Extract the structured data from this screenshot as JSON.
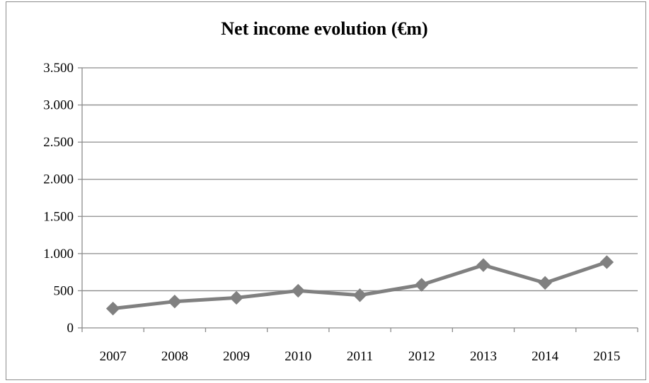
{
  "chart_data": {
    "type": "line",
    "title": "Net income evolution (€m)",
    "xlabel": "",
    "ylabel": "",
    "categories": [
      "2007",
      "2008",
      "2009",
      "2010",
      "2011",
      "2012",
      "2013",
      "2014",
      "2015"
    ],
    "series": [
      {
        "values": [
          260,
          355,
          405,
          500,
          440,
          580,
          845,
          605,
          885
        ],
        "color": "#808080",
        "marker": "diamond"
      }
    ],
    "ylim": [
      0,
      3500
    ],
    "yticks": [
      0,
      500,
      1000,
      1500,
      2000,
      2500,
      3000,
      3500
    ],
    "ytick_labels": [
      "0",
      "500",
      "1.000",
      "1.500",
      "2.000",
      "2.500",
      "3.000",
      "3.500"
    ],
    "grid": "horizontal",
    "legend": "none"
  }
}
